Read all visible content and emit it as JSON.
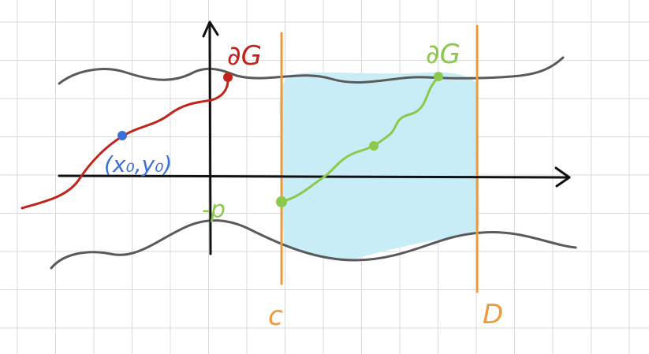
{
  "labels": {
    "boundary_top_left": "∂G",
    "boundary_top_right": "∂G",
    "initial_point": "(x₀,y₀)",
    "minus_p": "-p",
    "c": "c",
    "d": "D"
  },
  "colors": {
    "grid": "#d9d9d9",
    "axis": "#111111",
    "boundary": "#5a5a5a",
    "region_fill": "#c9edf7",
    "red_curve": "#c0241b",
    "green_curve": "#8cc84b",
    "blue_point": "#3b6fd8",
    "orange_lines": "#ee9a3a"
  }
}
